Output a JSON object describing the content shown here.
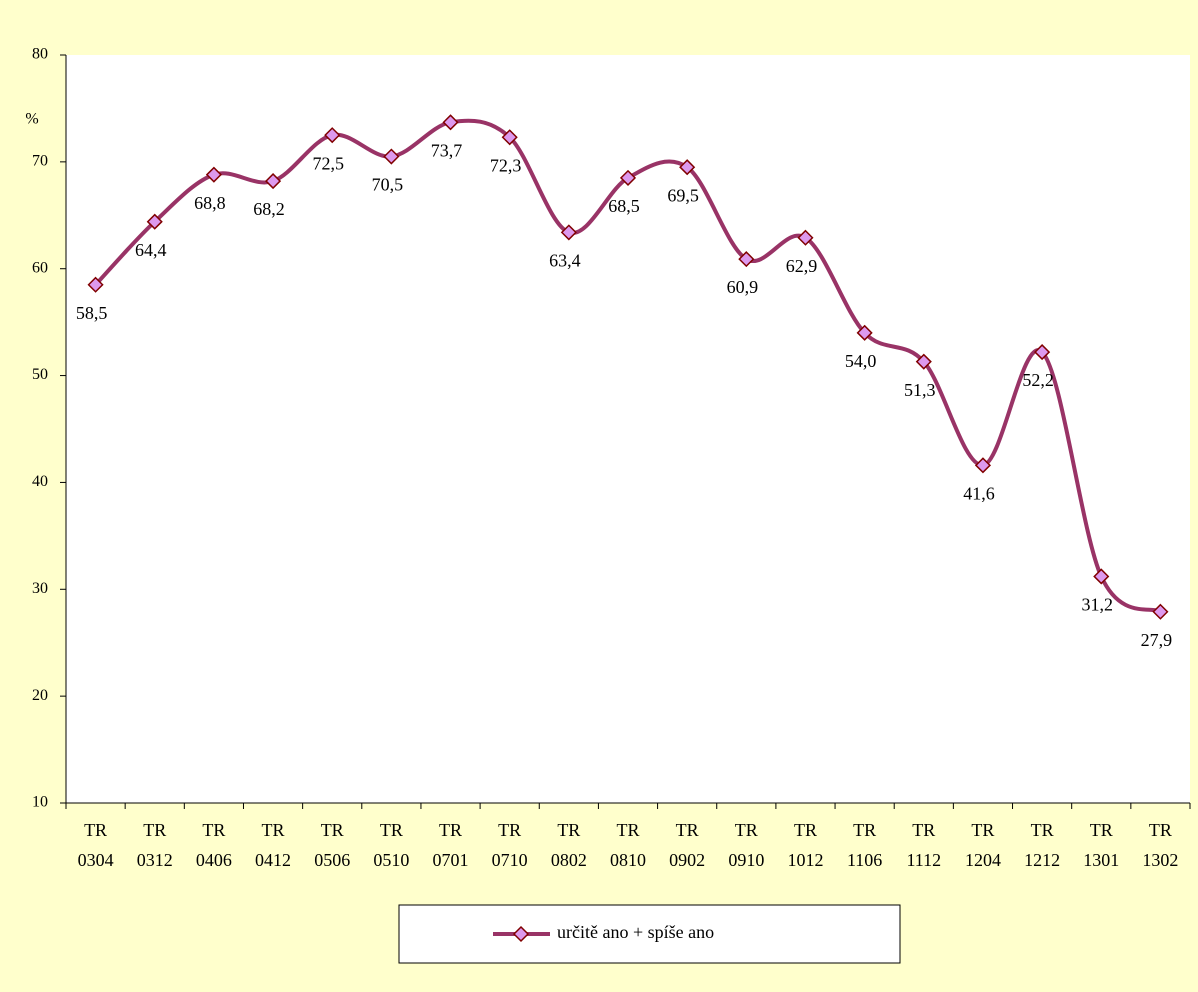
{
  "chart_data": {
    "type": "line",
    "y_label": "%",
    "categories": [
      "TR 0304",
      "TR 0312",
      "TR 0406",
      "TR 0412",
      "TR 0506",
      "TR 0510",
      "TR 0701",
      "TR 0710",
      "TR 0802",
      "TR 0810",
      "TR 0902",
      "TR 0910",
      "TR 1012",
      "TR 1106",
      "TR 1112",
      "TR 1204",
      "TR 1212",
      "TR 1301",
      "TR 1302"
    ],
    "series": [
      {
        "name": "určitě ano + spíše ano",
        "color": "#993366",
        "marker_color": "#dd99ee",
        "values": [
          58.5,
          64.4,
          68.8,
          68.2,
          72.5,
          70.5,
          73.7,
          72.3,
          63.4,
          68.5,
          69.5,
          60.9,
          62.9,
          54.0,
          51.3,
          41.6,
          52.2,
          31.2,
          27.9
        ],
        "value_labels": [
          "58,5",
          "64,4",
          "68,8",
          "68,2",
          "72,5",
          "70,5",
          "73,7",
          "72,3",
          "63,4",
          "68,5",
          "69,5",
          "60,9",
          "62,9",
          "54,0",
          "51,3",
          "41,6",
          "52,2",
          "31,2",
          "27,9"
        ]
      }
    ],
    "ylim": [
      10,
      80
    ],
    "yticks": [
      10,
      20,
      30,
      40,
      50,
      60,
      70,
      80
    ],
    "grid": false,
    "smooth": true,
    "legend": "bottom"
  }
}
